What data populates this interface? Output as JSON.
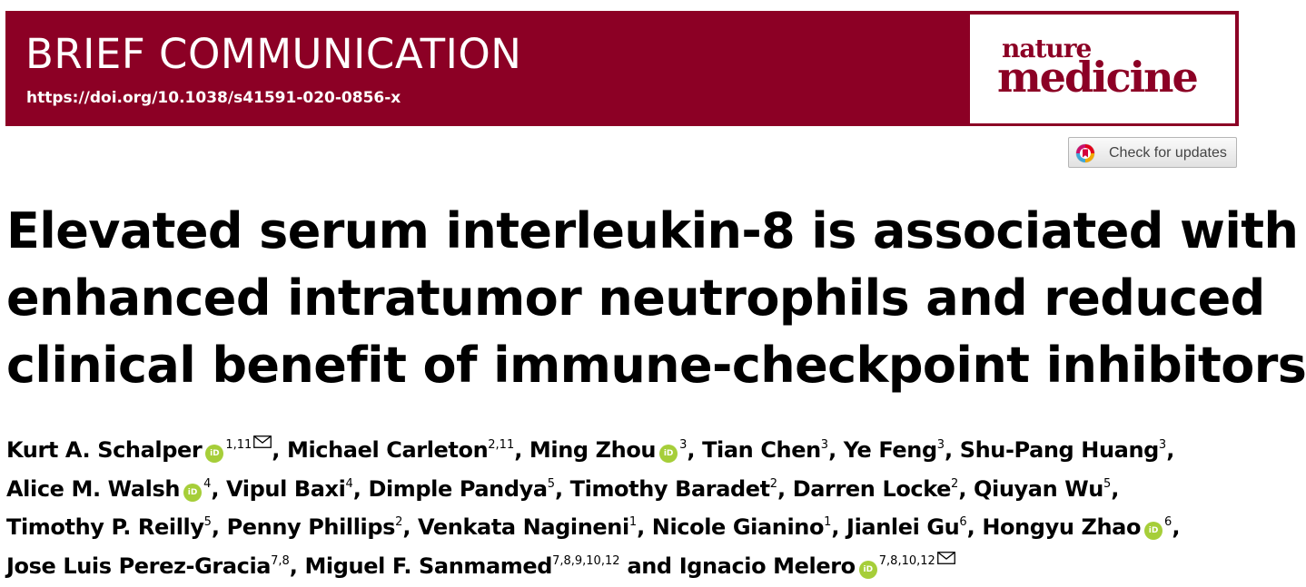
{
  "banner": {
    "article_type": "BRIEF COMMUNICATION",
    "doi": "https://doi.org/10.1038/s41591-020-0856-x",
    "journal_top": "nature",
    "journal_bottom": "medicine",
    "brand_color": "#8c0025"
  },
  "check_updates": {
    "label": "Check for updates",
    "icon": "crossmark-icon"
  },
  "title_lines": [
    "Elevated serum interleukin-8 is associated with",
    "enhanced intratumor neutrophils and reduced",
    "clinical benefit of immune-checkpoint inhibitors"
  ],
  "authors": [
    {
      "name": "Kurt A. Schalper",
      "orcid": true,
      "sup": "1,11",
      "mail": true,
      "sep": ", "
    },
    {
      "name": "Michael Carleton",
      "orcid": false,
      "sup": "2,11",
      "mail": false,
      "sep": ", "
    },
    {
      "name": "Ming Zhou",
      "orcid": true,
      "sup": "3",
      "mail": false,
      "sep": ", "
    },
    {
      "name": "Tian Chen",
      "orcid": false,
      "sup": "3",
      "mail": false,
      "sep": ", "
    },
    {
      "name": "Ye Feng",
      "orcid": false,
      "sup": "3",
      "mail": false,
      "sep": ", "
    },
    {
      "name": "Shu-Pang Huang",
      "orcid": false,
      "sup": "3",
      "mail": false,
      "sep": ","
    },
    {
      "name": "Alice M. Walsh",
      "orcid": true,
      "sup": "4",
      "mail": false,
      "sep": ", "
    },
    {
      "name": "Vipul Baxi",
      "orcid": false,
      "sup": "4",
      "mail": false,
      "sep": ", "
    },
    {
      "name": "Dimple Pandya",
      "orcid": false,
      "sup": "5",
      "mail": false,
      "sep": ", "
    },
    {
      "name": "Timothy Baradet",
      "orcid": false,
      "sup": "2",
      "mail": false,
      "sep": ", "
    },
    {
      "name": "Darren Locke",
      "orcid": false,
      "sup": "2",
      "mail": false,
      "sep": ", "
    },
    {
      "name": "Qiuyan Wu",
      "orcid": false,
      "sup": "5",
      "mail": false,
      "sep": ","
    },
    {
      "name": "Timothy P. Reilly",
      "orcid": false,
      "sup": "5",
      "mail": false,
      "sep": ", "
    },
    {
      "name": "Penny Phillips",
      "orcid": false,
      "sup": "2",
      "mail": false,
      "sep": ", "
    },
    {
      "name": "Venkata Nagineni",
      "orcid": false,
      "sup": "1",
      "mail": false,
      "sep": ", "
    },
    {
      "name": "Nicole Gianino",
      "orcid": false,
      "sup": "1",
      "mail": false,
      "sep": ", "
    },
    {
      "name": "Jianlei Gu",
      "orcid": false,
      "sup": "6",
      "mail": false,
      "sep": ", "
    },
    {
      "name": "Hongyu Zhao",
      "orcid": true,
      "sup": "6",
      "mail": false,
      "sep": ","
    },
    {
      "name": "Jose Luis Perez-Gracia",
      "orcid": false,
      "sup": "7,8",
      "mail": false,
      "sep": ", "
    },
    {
      "name": "Miguel F. Sanmamed",
      "orcid": false,
      "sup": "7,8,9,10,12",
      "mail": false,
      "sep": " and "
    },
    {
      "name": "Ignacio Melero",
      "orcid": true,
      "sup": "7,8,10,12",
      "mail": true,
      "sep": ""
    }
  ],
  "author_line_breaks": [
    6,
    12,
    18
  ],
  "orcid_label": "iD",
  "orcid_color": "#a6ce39"
}
